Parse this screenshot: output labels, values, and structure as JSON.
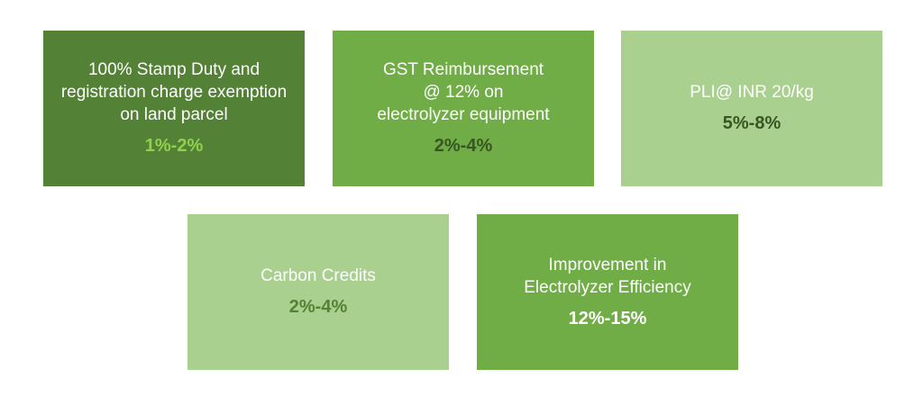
{
  "boxes": [
    {
      "title": "100% Stamp Duty and\nregistration charge exemption\non land parcel",
      "value": "1%-2%",
      "bg_color": "#538135",
      "value_color": "#92d050"
    },
    {
      "title": "GST Reimbursement\n@ 12% on\nelectrolyzer equipment",
      "value": "2%-4%",
      "bg_color": "#70ad47",
      "value_color": "#375623"
    },
    {
      "title": "PLI@ INR 20/kg",
      "value": "5%-8%",
      "bg_color": "#a9d08e",
      "value_color": "#375623"
    },
    {
      "title": "Carbon Credits",
      "value": "2%-4%",
      "bg_color": "#a9d08e",
      "value_color": "#548235"
    },
    {
      "title": "Improvement in\nElectrolyzer Efficiency",
      "value": "12%-15%",
      "bg_color": "#70ad47",
      "value_color": "#ffffff"
    }
  ]
}
